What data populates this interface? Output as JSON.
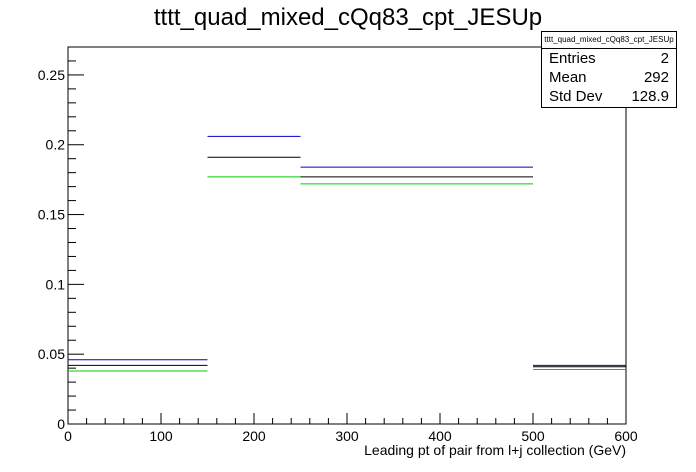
{
  "chart_data": {
    "type": "step",
    "title": "tttt_quad_mixed_cQq83_cpt_JESUp",
    "xlabel": "Leading pt of pair from l+j collection (GeV)",
    "ylabel": "",
    "xlim": [
      0,
      600
    ],
    "ylim": [
      0,
      0.27
    ],
    "x_ticks": [
      "0",
      "100",
      "200",
      "300",
      "400",
      "500",
      "600"
    ],
    "y_ticks": [
      "0",
      "0.05",
      "0.1",
      "0.15",
      "0.2",
      "0.25"
    ],
    "bin_edges": [
      0,
      150,
      250,
      500,
      600
    ],
    "series": [
      {
        "color": "#0000cc",
        "values": [
          0.046,
          0.206,
          0.184,
          0.042
        ]
      },
      {
        "color": "#000000",
        "values": [
          0.042,
          0.191,
          0.177,
          0.041
        ]
      },
      {
        "color": "#00cc00",
        "values": [
          0.038,
          0.177,
          0.172,
          0.039
        ]
      }
    ],
    "stats": {
      "name": "tttt_quad_mixed_cQq83_cpt_JESUp",
      "rows": [
        {
          "label": "Entries",
          "value": "2"
        },
        {
          "label": "Mean",
          "value": "292"
        },
        {
          "label": "Std Dev",
          "value": "128.9"
        }
      ]
    }
  }
}
